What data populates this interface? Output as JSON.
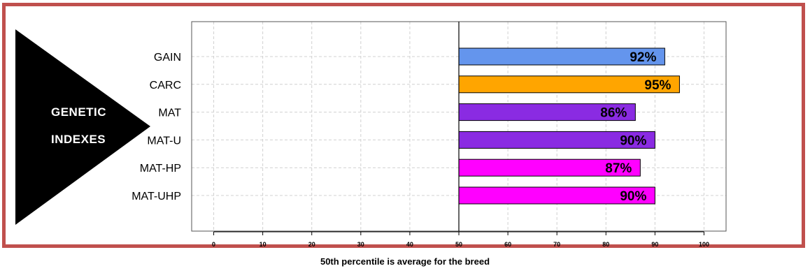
{
  "side_label": {
    "line1": "GENETIC",
    "line2": "INDEXES"
  },
  "caption": "50th percentile is average for the breed",
  "colors": {
    "frame": "#c0504d",
    "gain": "#6495ed",
    "carc": "#ffa500",
    "mat": "#8a2be2",
    "mat_hp": "#ff00ff"
  },
  "chart_data": {
    "type": "bar",
    "orientation": "horizontal",
    "categories": [
      "GAIN",
      "CARC",
      "MAT",
      "MAT-U",
      "MAT-HP",
      "MAT-UHP"
    ],
    "values": [
      92,
      95,
      86,
      90,
      87,
      90
    ],
    "labels": [
      "92%",
      "95%",
      "86%",
      "90%",
      "87%",
      "90%"
    ],
    "bar_colors": [
      "#6495ed",
      "#ffa500",
      "#8a2be2",
      "#8a2be2",
      "#ff00ff",
      "#ff00ff"
    ],
    "baseline": 50,
    "xlim": [
      -4.5,
      104.5
    ],
    "xticks": [
      0,
      10,
      20,
      30,
      40,
      50,
      60,
      70,
      80,
      90,
      100
    ],
    "grid": true,
    "title": "",
    "xlabel": "",
    "ylabel": ""
  }
}
